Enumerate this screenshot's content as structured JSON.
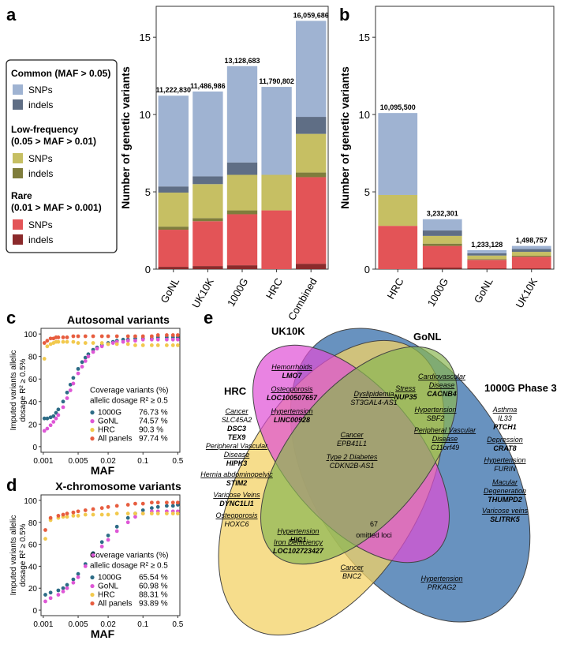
{
  "panel_letters": {
    "a": "a",
    "b": "b",
    "c": "c",
    "d": "d",
    "e": "e"
  },
  "colors": {
    "common_snp": "#9fb3d2",
    "common_indel": "#5f6e85",
    "low_snp": "#c6bf63",
    "low_indel": "#7f7d3c",
    "rare_snp": "#e35457",
    "rare_indel": "#8b2a2b",
    "p1000G": "#2d6c86",
    "pGoNL": "#de57d6",
    "pHRC": "#f2c94d",
    "pAll": "#e75d3f",
    "venn_hrc": "#f3d266",
    "venn_uk": "#8ab653",
    "venn_gonl": "#df4fd5",
    "venn_1000g": "#4d7fb4"
  },
  "legend": {
    "common_header": "Common (MAF > 0.05)",
    "low_header_1": "Low-frequency",
    "low_header_2": "(0.05 > MAF > 0.01)",
    "rare_header_1": "Rare",
    "rare_header_2": "(0.01 > MAF > 0.001)",
    "snps": "SNPs",
    "indels": "indels"
  },
  "chart_data": [
    {
      "type": "bar",
      "panel": "a",
      "ylabel": "Number of genetic variants",
      "ylim": [
        0,
        17
      ],
      "yticks": [
        0,
        5,
        10,
        15
      ],
      "categories": [
        "GoNL",
        "UK10K",
        "1000G",
        "HRC",
        "Combined"
      ],
      "totals": [
        "11,222,830",
        "11,486,986",
        "13,128,683",
        "11,790,802",
        "16,059,686"
      ],
      "series": [
        {
          "name": "Rare indels",
          "color": "rare_indel",
          "values": [
            0.15,
            0.2,
            0.25,
            0.0,
            0.35
          ]
        },
        {
          "name": "Rare SNPs",
          "color": "rare_snp",
          "values": [
            2.4,
            2.9,
            3.3,
            3.8,
            5.6
          ]
        },
        {
          "name": "Low-frequency indels",
          "color": "low_indel",
          "values": [
            0.2,
            0.2,
            0.25,
            0.0,
            0.3
          ]
        },
        {
          "name": "Low-frequency SNPs",
          "color": "low_snp",
          "values": [
            2.2,
            2.2,
            2.3,
            2.3,
            2.5
          ]
        },
        {
          "name": "Common indels",
          "color": "common_indel",
          "values": [
            0.4,
            0.5,
            0.8,
            0.0,
            1.1
          ]
        },
        {
          "name": "Common SNPs",
          "color": "common_snp",
          "values": [
            5.87,
            5.49,
            6.23,
            5.69,
            6.21
          ]
        }
      ]
    },
    {
      "type": "bar",
      "panel": "b",
      "ylabel": "Number of genetic variants",
      "ylim": [
        0,
        17
      ],
      "yticks": [
        0,
        5,
        10,
        15
      ],
      "categories": [
        "HRC",
        "1000G",
        "GoNL",
        "UK10K"
      ],
      "totals": [
        "10,095,500",
        "3,232,301",
        "1,233,128",
        "1,498,757"
      ],
      "series": [
        {
          "name": "Rare indels",
          "color": "rare_indel",
          "values": [
            0.0,
            0.1,
            0.05,
            0.05
          ]
        },
        {
          "name": "Rare SNPs",
          "color": "rare_snp",
          "values": [
            2.8,
            1.4,
            0.55,
            0.75
          ]
        },
        {
          "name": "Low-frequency indels",
          "color": "low_indel",
          "values": [
            0.0,
            0.15,
            0.05,
            0.07
          ]
        },
        {
          "name": "Low-frequency SNPs",
          "color": "low_snp",
          "values": [
            2.0,
            0.5,
            0.23,
            0.25
          ]
        },
        {
          "name": "Common indels",
          "color": "common_indel",
          "values": [
            0.0,
            0.35,
            0.15,
            0.18
          ]
        },
        {
          "name": "Common SNPs",
          "color": "common_snp",
          "values": [
            5.3,
            0.73,
            0.2,
            0.2
          ]
        }
      ]
    },
    {
      "type": "scatter",
      "panel": "c",
      "title": "Autosomal variants",
      "xlabel": "MAF",
      "ylabel_1": "Imputed variants allelic",
      "ylabel_2": "dosage R² ≥ 0.5%",
      "xscale": "log",
      "xlim": [
        0.0009,
        0.55
      ],
      "xticks": [
        0.001,
        0.005,
        0.02,
        0.1,
        0.5
      ],
      "xticklabels": [
        "0.001",
        "0.005",
        "0.02",
        "0.1",
        "0.5"
      ],
      "ylim": [
        -5,
        105
      ],
      "yticks": [
        0,
        20,
        40,
        60,
        80,
        100
      ],
      "legend_title_1": "Coverage variants (%)",
      "legend_title_2": "allelic dosage R² ≥ 0.5",
      "series": [
        {
          "name": "1000G",
          "pct": "76.73 %",
          "color": "p1000G",
          "x": [
            0.00105,
            0.0012,
            0.0014,
            0.0016,
            0.0018,
            0.002,
            0.0025,
            0.003,
            0.0035,
            0.004,
            0.005,
            0.006,
            0.007,
            0.008,
            0.01,
            0.012,
            0.015,
            0.02,
            0.025,
            0.03,
            0.04,
            0.05,
            0.07,
            0.1,
            0.15,
            0.2,
            0.3,
            0.4,
            0.5
          ],
          "y": [
            25,
            25,
            26,
            27,
            30,
            33,
            40,
            48,
            55,
            61,
            69,
            75,
            79,
            82,
            86,
            88,
            90,
            92,
            93,
            94,
            95,
            95,
            96,
            96,
            96,
            97,
            97,
            97,
            97
          ]
        },
        {
          "name": "GoNL",
          "pct": "74.57 %",
          "color": "pGoNL",
          "x": [
            0.00105,
            0.0012,
            0.0014,
            0.0016,
            0.0018,
            0.002,
            0.0025,
            0.003,
            0.0035,
            0.004,
            0.005,
            0.006,
            0.007,
            0.008,
            0.01,
            0.012,
            0.015,
            0.02,
            0.025,
            0.03,
            0.04,
            0.05,
            0.07,
            0.1,
            0.15,
            0.2,
            0.3,
            0.4,
            0.5
          ],
          "y": [
            14,
            16,
            19,
            22,
            25,
            28,
            35,
            43,
            50,
            56,
            65,
            71,
            76,
            80,
            84,
            87,
            89,
            91,
            92,
            93,
            93,
            94,
            94,
            95,
            95,
            95,
            95,
            95,
            95
          ]
        },
        {
          "name": "HRC",
          "pct": "90.3 %",
          "color": "pHRC",
          "x": [
            0.00105,
            0.0012,
            0.0014,
            0.0016,
            0.0018,
            0.002,
            0.0025,
            0.003,
            0.004,
            0.005,
            0.007,
            0.01,
            0.015,
            0.02,
            0.03,
            0.05,
            0.07,
            0.1,
            0.15,
            0.2,
            0.3,
            0.4,
            0.5
          ],
          "y": [
            78,
            89,
            91,
            92,
            93,
            93,
            93,
            93,
            93,
            92,
            92,
            92,
            92,
            91,
            91,
            91,
            90,
            90,
            90,
            90,
            90,
            90,
            90
          ]
        },
        {
          "name": "All panels",
          "pct": "97.74 %",
          "color": "pAll",
          "x": [
            0.00105,
            0.0012,
            0.0014,
            0.0016,
            0.0018,
            0.002,
            0.0025,
            0.003,
            0.004,
            0.005,
            0.007,
            0.01,
            0.015,
            0.02,
            0.03,
            0.05,
            0.07,
            0.1,
            0.15,
            0.2,
            0.3,
            0.4,
            0.5
          ],
          "y": [
            92,
            94,
            96,
            96,
            97,
            97,
            97,
            97,
            98,
            98,
            98,
            98,
            98,
            98,
            98,
            98,
            98,
            98,
            98,
            99,
            99,
            99,
            99
          ]
        }
      ]
    },
    {
      "type": "scatter",
      "panel": "d",
      "title": "X-chromosome variants",
      "xlabel": "MAF",
      "ylabel_1": "Imputed variants allelic",
      "ylabel_2": "dosage R² ≥ 0.5%",
      "xscale": "log",
      "xlim": [
        0.0009,
        0.55
      ],
      "xticks": [
        0.001,
        0.005,
        0.02,
        0.1,
        0.5
      ],
      "xticklabels": [
        "0.001",
        "0.005",
        "0.02",
        "0.1",
        "0.5"
      ],
      "ylim": [
        -5,
        105
      ],
      "yticks": [
        0,
        20,
        40,
        60,
        80,
        100
      ],
      "legend_title_1": "Coverage variants (%)",
      "legend_title_2": "allelic dosage R² ≥ 0.5",
      "series": [
        {
          "name": "1000G",
          "pct": "65.54 %",
          "color": "p1000G",
          "x": [
            0.0011,
            0.0014,
            0.002,
            0.0025,
            0.003,
            0.004,
            0.005,
            0.007,
            0.01,
            0.015,
            0.02,
            0.03,
            0.05,
            0.07,
            0.1,
            0.15,
            0.2,
            0.3,
            0.4,
            0.5
          ],
          "y": [
            14,
            16,
            18,
            20,
            23,
            28,
            33,
            42,
            52,
            62,
            68,
            76,
            84,
            88,
            91,
            93,
            94,
            95,
            95,
            96
          ]
        },
        {
          "name": "GoNL",
          "pct": "60.98 %",
          "color": "pGoNL",
          "x": [
            0.0011,
            0.0014,
            0.002,
            0.0025,
            0.003,
            0.004,
            0.005,
            0.007,
            0.01,
            0.015,
            0.02,
            0.03,
            0.05,
            0.07,
            0.1,
            0.15,
            0.2,
            0.3,
            0.4,
            0.5
          ],
          "y": [
            8,
            11,
            14,
            17,
            20,
            25,
            30,
            40,
            50,
            58,
            64,
            72,
            80,
            85,
            88,
            90,
            90,
            90,
            90,
            90
          ]
        },
        {
          "name": "HRC",
          "pct": "88.31 %",
          "color": "pHRC",
          "x": [
            0.0011,
            0.0014,
            0.002,
            0.0025,
            0.003,
            0.004,
            0.005,
            0.007,
            0.01,
            0.015,
            0.02,
            0.03,
            0.05,
            0.07,
            0.1,
            0.15,
            0.2,
            0.3,
            0.4,
            0.5
          ],
          "y": [
            65,
            82,
            84,
            85,
            85,
            86,
            86,
            87,
            87,
            87,
            87,
            88,
            88,
            88,
            88,
            88,
            88,
            88,
            88,
            88
          ]
        },
        {
          "name": "All panels",
          "pct": "93.89 %",
          "color": "pAll",
          "x": [
            0.0011,
            0.0014,
            0.002,
            0.0025,
            0.003,
            0.004,
            0.005,
            0.007,
            0.01,
            0.015,
            0.02,
            0.03,
            0.05,
            0.07,
            0.1,
            0.15,
            0.2,
            0.3,
            0.4,
            0.5
          ],
          "y": [
            73,
            84,
            86,
            87,
            88,
            89,
            90,
            91,
            92,
            93,
            94,
            95,
            96,
            97,
            97,
            98,
            98,
            98,
            98,
            98
          ]
        }
      ]
    }
  ],
  "venn": {
    "sets": {
      "hrc": "HRC",
      "uk10k": "UK10K",
      "gonl": "GoNL",
      "g1000": "1000G Phase 3"
    },
    "center_1": "67",
    "center_2": "omitted loci",
    "labels": [
      {
        "key": "hrc_cancer",
        "trait": "Cancer",
        "genes": [
          "SLC45A2",
          "DSC3",
          "TEX9"
        ],
        "bold": [
          false,
          true,
          true
        ]
      },
      {
        "key": "hrc_pvd",
        "trait": "Peripheral Vascular",
        "trait2": "Disease",
        "genes": [
          "HIPK3"
        ],
        "bold": [
          true
        ]
      },
      {
        "key": "hrc_hernia",
        "trait": "Hernia abdominopelvic",
        "genes": [
          "STIM2"
        ],
        "bold": [
          true
        ]
      },
      {
        "key": "hrc_varicose",
        "trait": "Varicose Veins",
        "genes": [
          "DYNC1LI1"
        ],
        "bold": [
          true
        ]
      },
      {
        "key": "hrc_osteo",
        "trait": "Osteoporosis",
        "genes": [
          "HOXC6"
        ],
        "bold": [
          false
        ]
      },
      {
        "key": "uk_hemor",
        "trait": "Hemorrhoids",
        "genes": [
          "LMO7"
        ],
        "bold": [
          true
        ]
      },
      {
        "key": "hrcuk_osteo",
        "trait": "Osteoporosis",
        "genes": [
          "LOC100507657"
        ],
        "bold": [
          true
        ]
      },
      {
        "key": "hrcuk_hyper",
        "trait": "Hypertension",
        "genes": [
          "LINC00928"
        ],
        "bold": [
          true
        ]
      },
      {
        "key": "mid_dyslip",
        "trait": "Dyslipidemia",
        "genes": [
          "ST3GAL4-AS1"
        ],
        "bold": [
          false
        ]
      },
      {
        "key": "mid_cancer",
        "trait": "Cancer",
        "genes": [
          "EPB41L1"
        ],
        "bold": [
          false
        ]
      },
      {
        "key": "mid_t2d",
        "trait": "Type 2 Diabetes",
        "genes": [
          "CDKN2B-AS1"
        ],
        "bold": [
          false
        ]
      },
      {
        "key": "gonl_stress",
        "trait": "Stress",
        "genes": [
          "NUP35"
        ],
        "bold": [
          true
        ]
      },
      {
        "key": "gonl_cvd",
        "trait": "Cardiovascular",
        "trait2": "Disease",
        "genes": [
          "CACNB4"
        ],
        "bold": [
          true
        ]
      },
      {
        "key": "gonl_hyper",
        "trait": "Hypertension",
        "genes": [
          "SBF2"
        ],
        "bold": [
          false
        ]
      },
      {
        "key": "gonl_pvd",
        "trait": "Peripheral Vascular",
        "trait2": "Disease",
        "genes": [
          "C11orf49"
        ],
        "bold": [
          false
        ]
      },
      {
        "key": "g_asthma",
        "trait": "Asthma",
        "genes": [
          "IL33",
          "PTCH1"
        ],
        "bold": [
          false,
          true
        ]
      },
      {
        "key": "g_dep",
        "trait": "Depression",
        "genes": [
          "CRAT8"
        ],
        "bold": [
          true
        ]
      },
      {
        "key": "g_hyper",
        "trait": "Hypertension",
        "genes": [
          "FURIN"
        ],
        "bold": [
          false
        ]
      },
      {
        "key": "g_macular",
        "trait": "Macular",
        "trait2": "Degeneration",
        "genes": [
          "THUMPD2"
        ],
        "bold": [
          true
        ]
      },
      {
        "key": "g_varicose",
        "trait": "Varicose veins",
        "genes": [
          "SLITRK5"
        ],
        "bold": [
          true
        ]
      },
      {
        "key": "hg_hyper",
        "trait": "Hypertension",
        "genes": [
          "HIC1"
        ],
        "bold": [
          true
        ]
      },
      {
        "key": "hg_iron",
        "trait": "Iron Defficiency",
        "genes": [
          "LOC102723427"
        ],
        "bold": [
          true
        ]
      },
      {
        "key": "hg_cancer",
        "trait": "Cancer",
        "genes": [
          "BNC2"
        ],
        "bold": [
          false
        ]
      },
      {
        "key": "ug_hyper",
        "trait": "Hypertension",
        "genes": [
          "PRKAG2"
        ],
        "bold": [
          false
        ]
      }
    ]
  }
}
